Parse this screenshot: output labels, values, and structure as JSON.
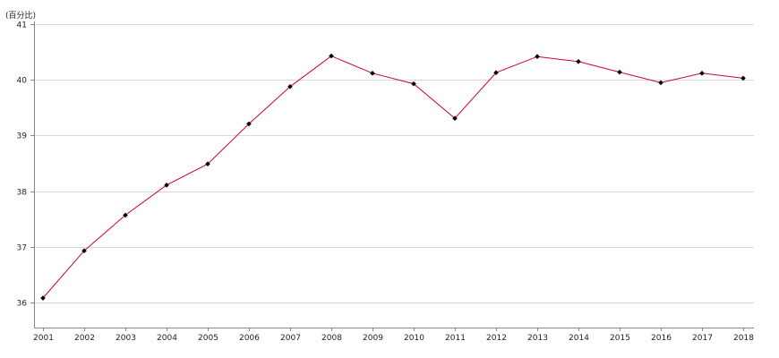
{
  "chart_data": {
    "type": "line",
    "title": "",
    "xlabel": "",
    "ylabel": "(百分比)",
    "x": [
      "2001",
      "2002",
      "2003",
      "2004",
      "2005",
      "2006",
      "2007",
      "2008",
      "2009",
      "2010",
      "2011",
      "2012",
      "2013",
      "2014",
      "2015",
      "2016",
      "2017",
      "2018"
    ],
    "series": [
      {
        "values": [
          36.08,
          36.93,
          37.57,
          38.11,
          38.49,
          39.21,
          39.88,
          40.43,
          40.12,
          39.93,
          39.31,
          40.13,
          40.42,
          40.33,
          40.14,
          39.95,
          40.12,
          40.03
        ]
      }
    ],
    "ylim": [
      35.55,
      41.05
    ],
    "y_ticks": [
      36,
      37,
      38,
      39,
      40,
      41
    ],
    "grid": "horizontal",
    "legend": "none",
    "colors": {
      "line": "#cc0033",
      "marker": "#000000",
      "grid": "#d9d9d9",
      "axis": "#888888"
    }
  }
}
